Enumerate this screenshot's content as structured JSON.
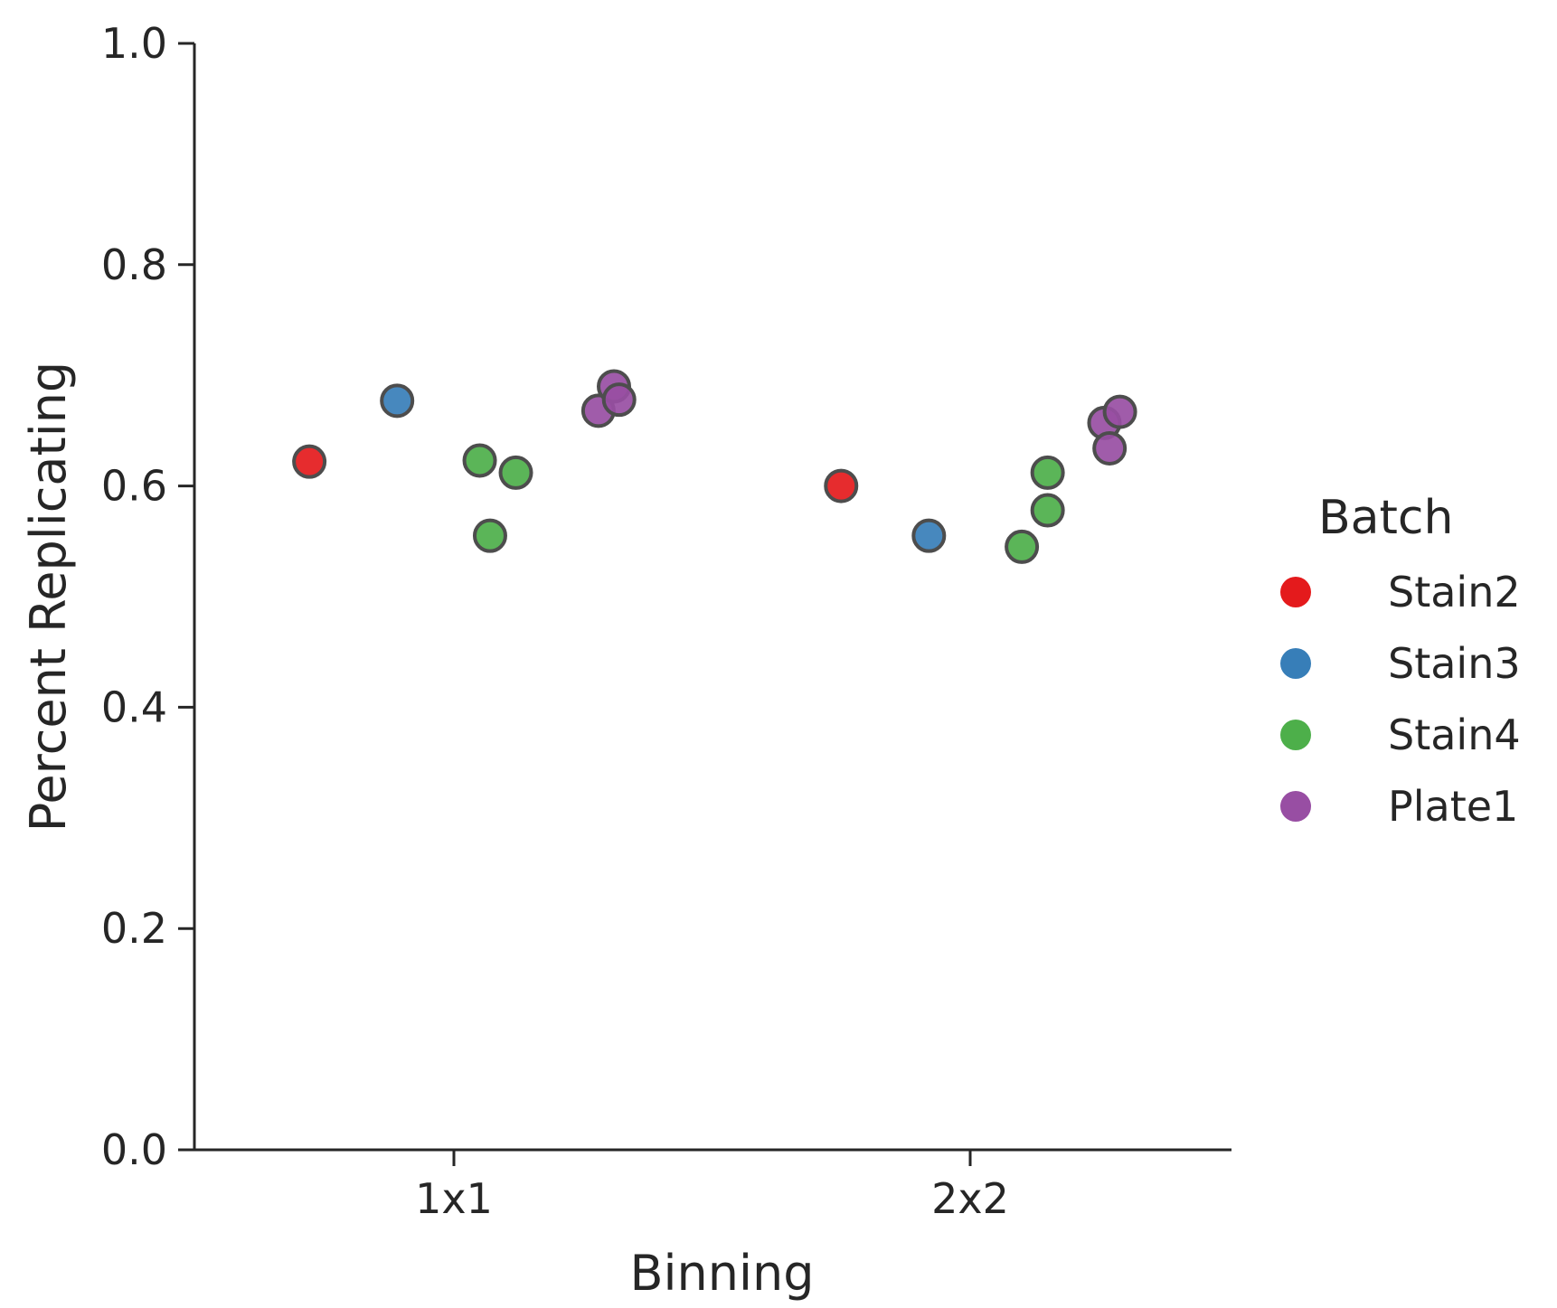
{
  "chart_data": {
    "type": "scatter",
    "xlabel": "Binning",
    "ylabel": "Percent Replicating",
    "categories": [
      "1x1",
      "2x2"
    ],
    "ylim": [
      0.0,
      1.0
    ],
    "yticks": [
      "0.0",
      "0.2",
      "0.4",
      "0.6",
      "0.8",
      "1.0"
    ],
    "grid": false,
    "legend": {
      "title": "Batch",
      "placement": "right",
      "entries": [
        {
          "name": "Stain2",
          "color": "#e41a1c"
        },
        {
          "name": "Stain3",
          "color": "#377eb8"
        },
        {
          "name": "Stain4",
          "color": "#4daf4a"
        },
        {
          "name": "Plate1",
          "color": "#984ea3"
        }
      ]
    },
    "series": [
      {
        "name": "Stain2",
        "color": "#e41a1c",
        "points": [
          {
            "category": "1x1",
            "offset": -0.28,
            "y": 0.622
          },
          {
            "category": "2x2",
            "offset": -0.25,
            "y": 0.6
          }
        ]
      },
      {
        "name": "Stain3",
        "color": "#377eb8",
        "points": [
          {
            "category": "1x1",
            "offset": -0.11,
            "y": 0.677
          },
          {
            "category": "2x2",
            "offset": -0.08,
            "y": 0.555
          }
        ]
      },
      {
        "name": "Stain4",
        "color": "#4daf4a",
        "points": [
          {
            "category": "1x1",
            "offset": 0.05,
            "y": 0.623
          },
          {
            "category": "1x1",
            "offset": 0.07,
            "y": 0.555
          },
          {
            "category": "1x1",
            "offset": 0.12,
            "y": 0.612
          },
          {
            "category": "2x2",
            "offset": 0.1,
            "y": 0.545
          },
          {
            "category": "2x2",
            "offset": 0.15,
            "y": 0.612
          },
          {
            "category": "2x2",
            "offset": 0.15,
            "y": 0.578
          }
        ]
      },
      {
        "name": "Plate1",
        "color": "#984ea3",
        "points": [
          {
            "category": "1x1",
            "offset": 0.28,
            "y": 0.668
          },
          {
            "category": "1x1",
            "offset": 0.31,
            "y": 0.69
          },
          {
            "category": "1x1",
            "offset": 0.32,
            "y": 0.678
          },
          {
            "category": "2x2",
            "offset": 0.26,
            "y": 0.657
          },
          {
            "category": "2x2",
            "offset": 0.27,
            "y": 0.634
          },
          {
            "category": "2x2",
            "offset": 0.29,
            "y": 0.667
          }
        ]
      }
    ]
  }
}
